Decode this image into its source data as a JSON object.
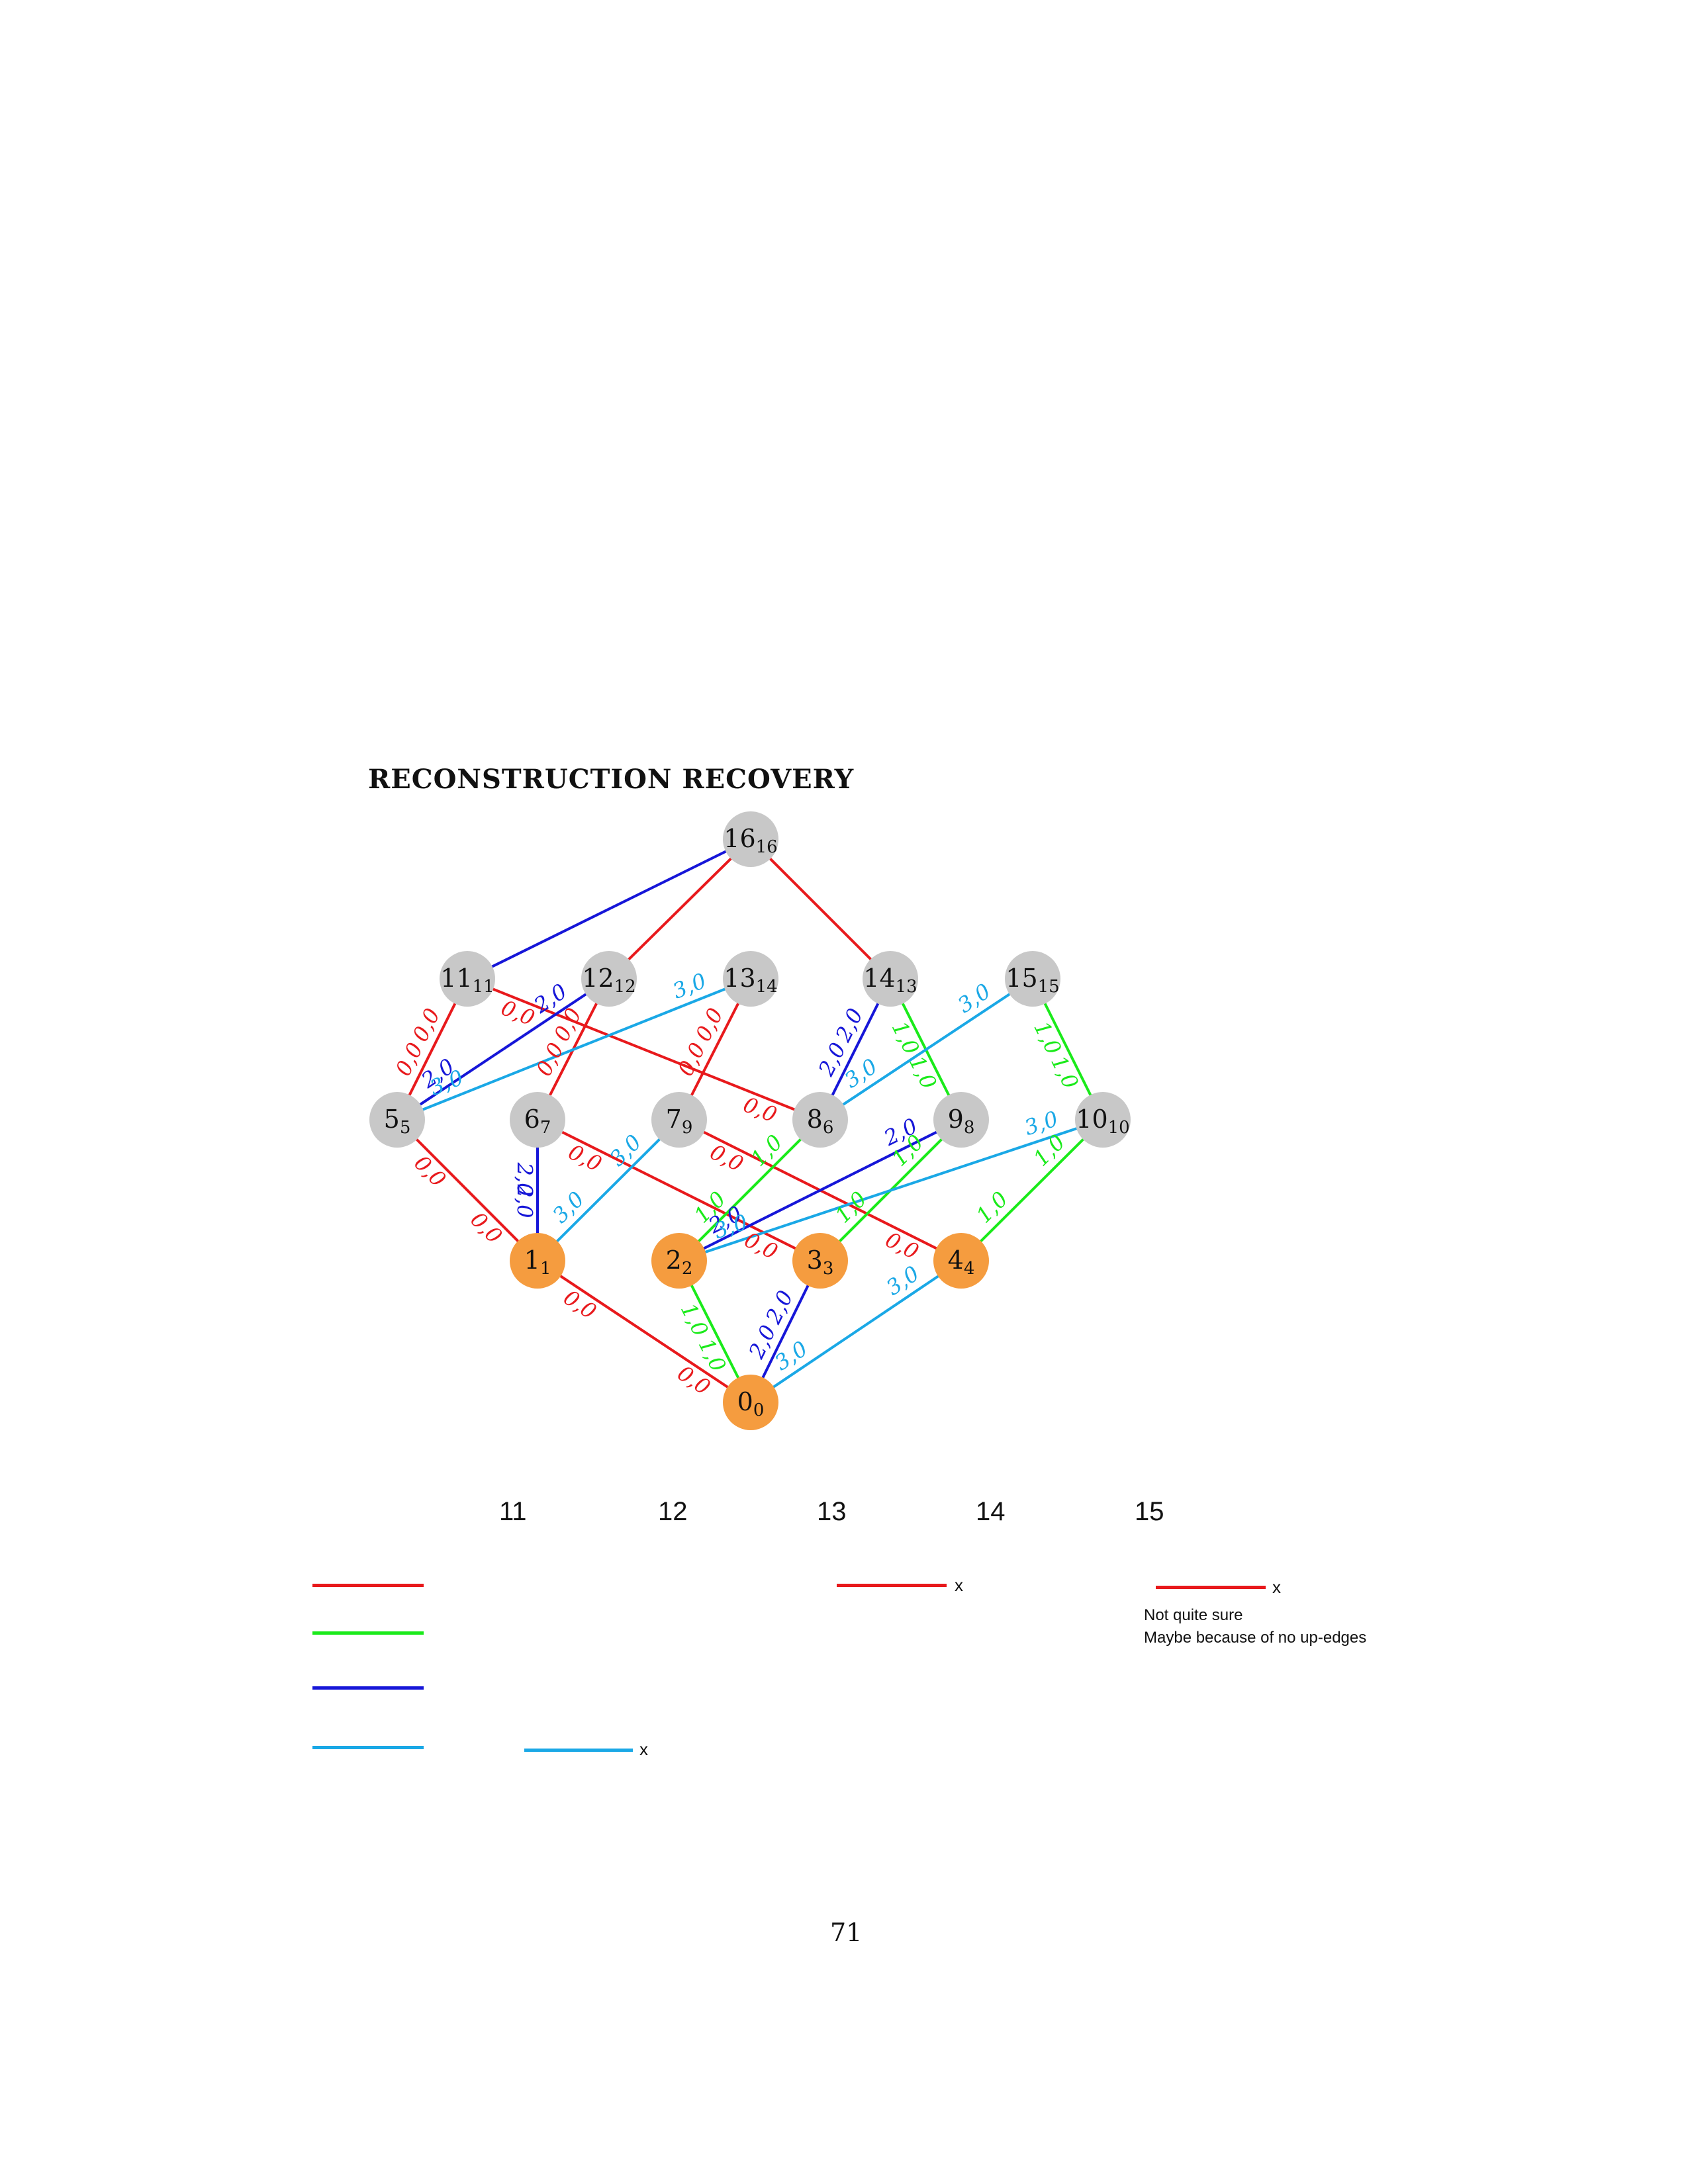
{
  "title": "RECONSTRUCTION RECOVERY",
  "page_number": "71",
  "colors": {
    "red": "#e8191c",
    "green": "#1aea1a",
    "blue": "#1616d8",
    "cyan": "#1aa8e6",
    "node_gray": "#c8c8c8",
    "node_orange": "#f59c3f"
  },
  "nodes": [
    {
      "id": "16",
      "label": "16",
      "sub": "16",
      "fill": "gray"
    },
    {
      "id": "11",
      "label": "11",
      "sub": "11",
      "fill": "gray"
    },
    {
      "id": "12",
      "label": "12",
      "sub": "12",
      "fill": "gray"
    },
    {
      "id": "13",
      "label": "13",
      "sub": "14",
      "fill": "gray"
    },
    {
      "id": "14",
      "label": "14",
      "sub": "13",
      "fill": "gray"
    },
    {
      "id": "15",
      "label": "15",
      "sub": "15",
      "fill": "gray"
    },
    {
      "id": "5",
      "label": "5",
      "sub": "5",
      "fill": "gray"
    },
    {
      "id": "6",
      "label": "6",
      "sub": "7",
      "fill": "gray"
    },
    {
      "id": "7",
      "label": "7",
      "sub": "9",
      "fill": "gray"
    },
    {
      "id": "8",
      "label": "8",
      "sub": "6",
      "fill": "gray"
    },
    {
      "id": "9",
      "label": "9",
      "sub": "8",
      "fill": "gray"
    },
    {
      "id": "10",
      "label": "10",
      "sub": "10",
      "fill": "gray"
    },
    {
      "id": "1",
      "label": "1",
      "sub": "1",
      "fill": "orange"
    },
    {
      "id": "2",
      "label": "2",
      "sub": "2",
      "fill": "orange"
    },
    {
      "id": "3",
      "label": "3",
      "sub": "3",
      "fill": "orange"
    },
    {
      "id": "4",
      "label": "4",
      "sub": "4",
      "fill": "orange"
    },
    {
      "id": "0",
      "label": "0",
      "sub": "0",
      "fill": "orange"
    }
  ],
  "edges": [
    {
      "from": "16",
      "to": "11",
      "color": "blue",
      "label": ""
    },
    {
      "from": "16",
      "to": "12",
      "color": "red",
      "label": ""
    },
    {
      "from": "16",
      "to": "14",
      "color": "red",
      "label": ""
    },
    {
      "from": "11",
      "to": "5",
      "color": "red",
      "label": "0,0"
    },
    {
      "from": "11",
      "to": "8",
      "color": "red",
      "label": "0,0"
    },
    {
      "from": "12",
      "to": "5",
      "color": "blue",
      "label": "2,0"
    },
    {
      "from": "12",
      "to": "6",
      "color": "red",
      "label": "0,0"
    },
    {
      "from": "13",
      "to": "5",
      "color": "cyan",
      "label": "3,0"
    },
    {
      "from": "13",
      "to": "7",
      "color": "red",
      "label": "0,0"
    },
    {
      "from": "14",
      "to": "8",
      "color": "blue",
      "label": "2,0"
    },
    {
      "from": "14",
      "to": "9",
      "color": "green",
      "label": "1,0"
    },
    {
      "from": "15",
      "to": "8",
      "color": "cyan",
      "label": "3,0"
    },
    {
      "from": "15",
      "to": "10",
      "color": "green",
      "label": "1,0"
    },
    {
      "from": "5",
      "to": "1",
      "color": "red",
      "label": "0,0"
    },
    {
      "from": "6",
      "to": "1",
      "color": "blue",
      "label": "2,0"
    },
    {
      "from": "6",
      "to": "3",
      "color": "red",
      "label": "0,0"
    },
    {
      "from": "7",
      "to": "1",
      "color": "cyan",
      "label": "3,0"
    },
    {
      "from": "7",
      "to": "4",
      "color": "red",
      "label": "0,0"
    },
    {
      "from": "8",
      "to": "2",
      "color": "green",
      "label": "1,0"
    },
    {
      "from": "9",
      "to": "2",
      "color": "blue",
      "label": "2,0"
    },
    {
      "from": "9",
      "to": "3",
      "color": "green",
      "label": "1,0"
    },
    {
      "from": "10",
      "to": "2",
      "color": "cyan",
      "label": "3,0"
    },
    {
      "from": "10",
      "to": "4",
      "color": "green",
      "label": "1,0"
    },
    {
      "from": "1",
      "to": "0",
      "color": "red",
      "label": "0,0"
    },
    {
      "from": "2",
      "to": "0",
      "color": "green",
      "label": "1,0"
    },
    {
      "from": "3",
      "to": "0",
      "color": "blue",
      "label": "2,0"
    },
    {
      "from": "4",
      "to": "0",
      "color": "cyan",
      "label": "3,0"
    }
  ],
  "annotations": {
    "column_numbers": [
      "11",
      "12",
      "13",
      "14",
      "15"
    ],
    "legend_colors": [
      "red",
      "green",
      "blue",
      "cyan"
    ],
    "marks": [
      {
        "column": "12",
        "color": "cyan",
        "text": "x"
      },
      {
        "column": "14",
        "color": "red",
        "text": "x"
      },
      {
        "column": "15",
        "color": "red",
        "text": "x"
      }
    ],
    "note_line1": "Not quite sure",
    "note_line2": "Maybe because of no up-edges"
  }
}
